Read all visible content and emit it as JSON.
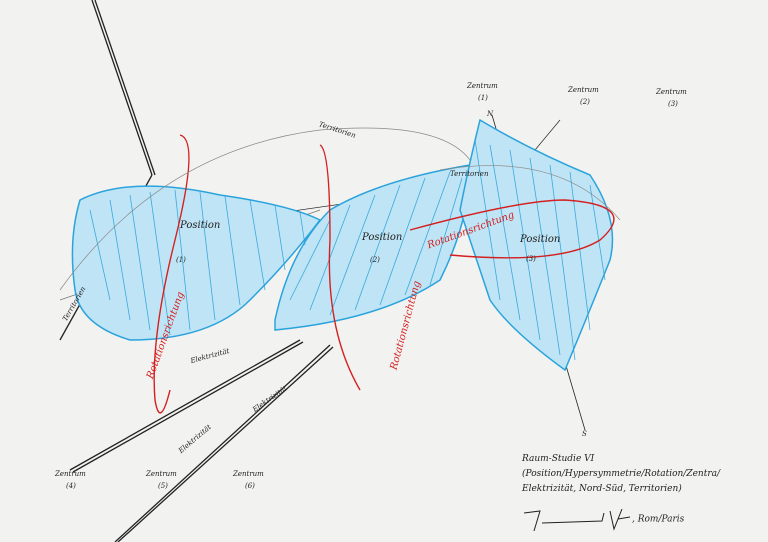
{
  "artwork": {
    "colors": {
      "background": "#f2f2f1",
      "blue": "#2aa3dc",
      "red": "#d42020",
      "ink": "#222222"
    },
    "positions": [
      {
        "label": "Position",
        "number": "(1)"
      },
      {
        "label": "Position",
        "number": "(2)"
      },
      {
        "label": "Position",
        "number": "(3)"
      }
    ],
    "zentren_top": [
      {
        "label": "Zentrum",
        "number": "(1)"
      },
      {
        "label": "Zentrum",
        "number": "(2)"
      },
      {
        "label": "Zentrum",
        "number": "(3)"
      }
    ],
    "zentren_bottom": [
      {
        "label": "Zentrum",
        "number": "(4)"
      },
      {
        "label": "Zentrum",
        "number": "(5)"
      },
      {
        "label": "Zentrum",
        "number": "(6)"
      }
    ],
    "territorien": [
      "Territorien",
      "Territorien",
      "Territorien"
    ],
    "elektrizitaet": [
      "Elektrizität",
      "Elektrizität",
      "Elektrizität"
    ],
    "red_notes": [
      "Rotationsrichtung",
      "Rotationsrichtung",
      "Rotationsrichtung"
    ],
    "compass": {
      "north": "N",
      "south": "S"
    },
    "caption": {
      "title": "Raum-Studie VI",
      "line1": "(Position/Hypersymmetrie/Rotation/Zentra/",
      "line2": "Elektrizität, Nord-Süd, Territorien)",
      "place": ", Rom/Paris"
    }
  }
}
